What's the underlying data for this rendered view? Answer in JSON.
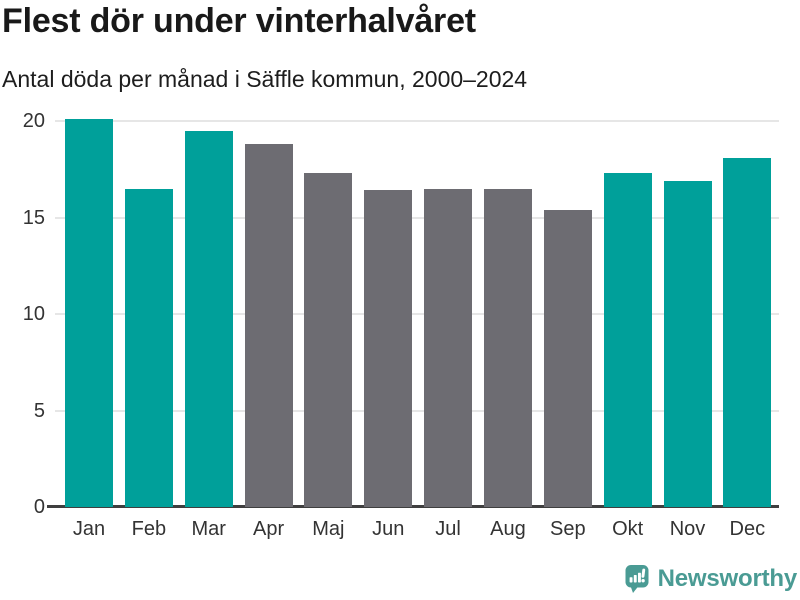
{
  "header": {
    "title": "Flest dör under vinterhalvåret",
    "subtitle": "Antal döda per månad i Säffle kommun, 2000–2024"
  },
  "chart_data": {
    "type": "bar",
    "title": "Flest dör under vinterhalvåret",
    "subtitle": "Antal döda per månad i Säffle kommun, 2000–2024",
    "categories": [
      "Jan",
      "Feb",
      "Mar",
      "Apr",
      "Maj",
      "Jun",
      "Jul",
      "Aug",
      "Sep",
      "Okt",
      "Nov",
      "Dec"
    ],
    "values": [
      20.1,
      16.5,
      19.5,
      18.8,
      17.3,
      16.4,
      16.5,
      16.5,
      15.4,
      17.3,
      16.9,
      18.1
    ],
    "highlighted": [
      true,
      true,
      true,
      false,
      false,
      false,
      false,
      false,
      false,
      true,
      true,
      true
    ],
    "xlabel": "",
    "ylabel": "",
    "ylim": [
      0,
      20
    ],
    "yticks": [
      0,
      5,
      10,
      15,
      20
    ],
    "grid": true,
    "legend": "none",
    "highlight_color": "#00a09a",
    "base_color": "#6d6c72"
  },
  "colors": {
    "highlight_bar": "#00a09a",
    "base_bar": "#6d6c72",
    "gridline": "#e6e6e6",
    "axis_line": "#3f3f3f",
    "tick_text": "#333333",
    "title_text": "#191919",
    "brand": "#4a9b94"
  },
  "footer": {
    "brand": "Newsworthy",
    "logo_icon": "newsworthy-speech-bubble-bar-chart-icon"
  }
}
